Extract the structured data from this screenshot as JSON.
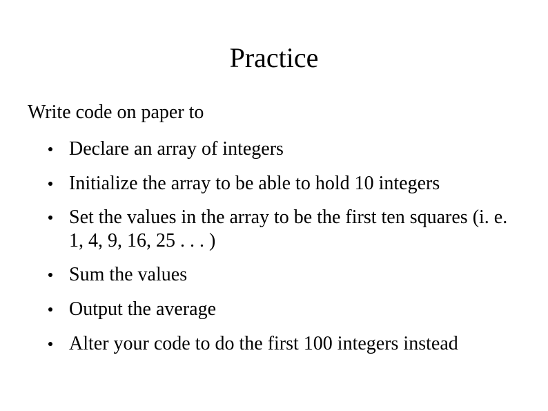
{
  "slide": {
    "title": "Practice",
    "intro": "Write code on paper to",
    "bullets": [
      "Declare an array of integers",
      "Initialize the array to be able to hold 10 integers",
      "Set the values in the array to be the first ten squares (i. e. 1, 4, 9, 16, 25 . . . )",
      "Sum the values",
      "Output the average",
      "Alter your code to do the first 100 integers instead"
    ],
    "styling": {
      "background_color": "#ffffff",
      "text_color": "#000000",
      "font_family": "Times New Roman",
      "title_fontsize": 40,
      "body_fontsize": 28,
      "bullet_style": "filled-circle",
      "bullet_color": "#000000",
      "bullet_size": 6
    }
  }
}
